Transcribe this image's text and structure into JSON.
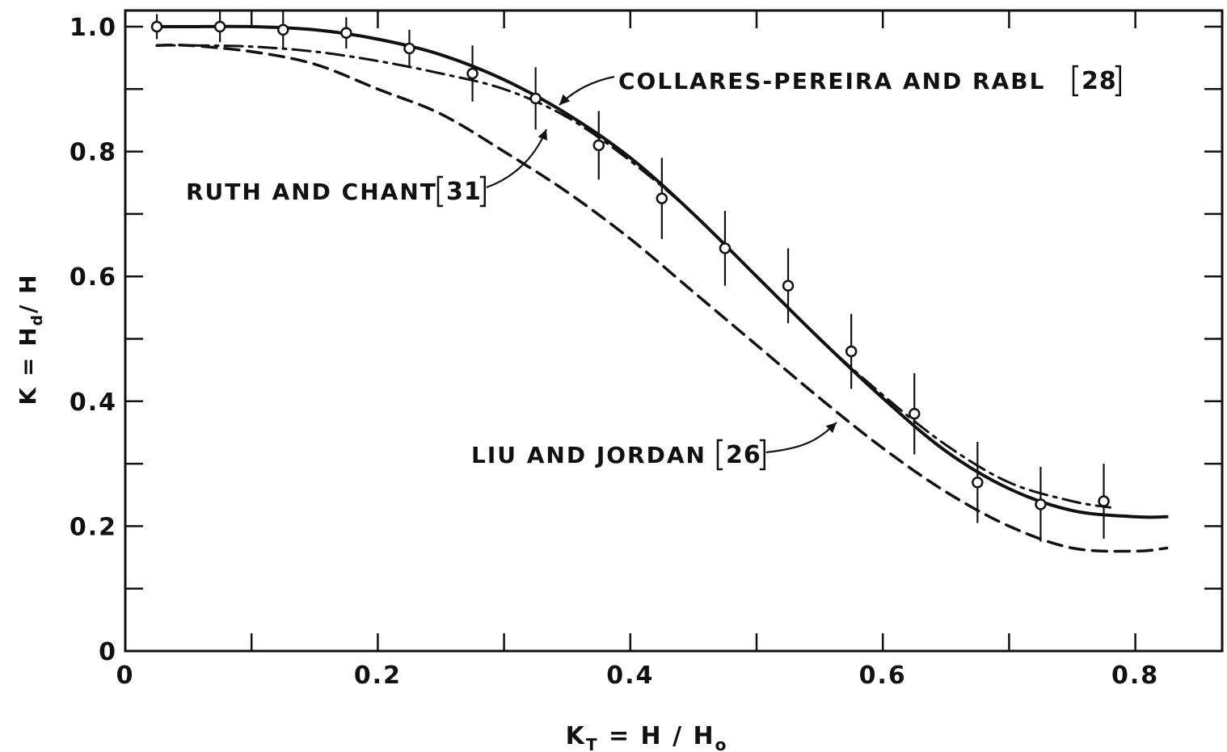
{
  "chart_data": {
    "type": "line",
    "title": "",
    "xlabel": "K",
    "xlabel_sub": "T",
    "xlabel_rest": " = H / H",
    "xlabel_rest_sub": "o",
    "ylabel": "K = H",
    "ylabel_sub": "d",
    "ylabel_rest": "/ H",
    "xlim": [
      0,
      0.86
    ],
    "ylim": [
      0,
      1.03
    ],
    "xticks": [
      0,
      0.1,
      0.2,
      0.3,
      0.4,
      0.5,
      0.6,
      0.7,
      0.8
    ],
    "xticklabels": [
      "0",
      "",
      "0.2",
      "",
      "0.4",
      "",
      "0.6",
      "",
      "0.8"
    ],
    "yticks": [
      0,
      0.1,
      0.2,
      0.3,
      0.4,
      0.5,
      0.6,
      0.7,
      0.8,
      0.9,
      1.0
    ],
    "yticklabels": [
      "0",
      "",
      "0.2",
      "",
      "0.4",
      "",
      "0.6",
      "",
      "0.8",
      "",
      "1.0"
    ],
    "grid": false,
    "series": [
      {
        "name": "COLLARES-PEREIRA AND RABL [28]",
        "style": "solid",
        "x": [
          0.025,
          0.05,
          0.1,
          0.15,
          0.2,
          0.25,
          0.3,
          0.35,
          0.4,
          0.45,
          0.5,
          0.55,
          0.6,
          0.65,
          0.7,
          0.75,
          0.8,
          0.825
        ],
        "y": [
          1.0,
          1.0,
          1.0,
          0.995,
          0.98,
          0.955,
          0.915,
          0.86,
          0.79,
          0.7,
          0.6,
          0.5,
          0.405,
          0.32,
          0.26,
          0.225,
          0.215,
          0.215
        ]
      },
      {
        "name": "RUTH AND CHANT [31]",
        "style": "dashdot",
        "x": [
          0.025,
          0.05,
          0.1,
          0.15,
          0.2,
          0.25,
          0.3,
          0.35,
          0.4,
          0.45,
          0.5,
          0.55,
          0.6,
          0.65,
          0.7,
          0.75,
          0.78
        ],
        "y": [
          0.97,
          0.97,
          0.968,
          0.96,
          0.945,
          0.925,
          0.9,
          0.855,
          0.785,
          0.7,
          0.6,
          0.5,
          0.41,
          0.33,
          0.27,
          0.24,
          0.23
        ]
      },
      {
        "name": "LIU AND JORDAN [26]",
        "style": "dashed",
        "x": [
          0.025,
          0.05,
          0.1,
          0.15,
          0.2,
          0.25,
          0.3,
          0.35,
          0.4,
          0.45,
          0.5,
          0.55,
          0.6,
          0.65,
          0.7,
          0.75,
          0.8,
          0.825
        ],
        "y": [
          0.97,
          0.97,
          0.96,
          0.94,
          0.9,
          0.86,
          0.8,
          0.735,
          0.66,
          0.575,
          0.49,
          0.405,
          0.325,
          0.255,
          0.2,
          0.165,
          0.16,
          0.165
        ]
      }
    ],
    "data_points": [
      {
        "x": 0.025,
        "y": 1.0,
        "err": 0.02
      },
      {
        "x": 0.075,
        "y": 1.0,
        "err": 0.025
      },
      {
        "x": 0.125,
        "y": 0.995,
        "err": 0.03
      },
      {
        "x": 0.175,
        "y": 0.99,
        "err": 0.025
      },
      {
        "x": 0.225,
        "y": 0.965,
        "err": 0.03
      },
      {
        "x": 0.275,
        "y": 0.925,
        "err": 0.045
      },
      {
        "x": 0.325,
        "y": 0.885,
        "err": 0.05
      },
      {
        "x": 0.375,
        "y": 0.81,
        "err": 0.055
      },
      {
        "x": 0.425,
        "y": 0.725,
        "err": 0.065
      },
      {
        "x": 0.475,
        "y": 0.645,
        "err": 0.06
      },
      {
        "x": 0.525,
        "y": 0.585,
        "err": 0.06
      },
      {
        "x": 0.575,
        "y": 0.48,
        "err": 0.06
      },
      {
        "x": 0.625,
        "y": 0.38,
        "err": 0.065
      },
      {
        "x": 0.675,
        "y": 0.27,
        "err": 0.065
      },
      {
        "x": 0.725,
        "y": 0.235,
        "err": 0.06
      },
      {
        "x": 0.775,
        "y": 0.24,
        "err": 0.06
      }
    ],
    "annotations": [
      {
        "text": "COLLARES-PEREIRA AND RABL",
        "ref": "[28]",
        "series": 0
      },
      {
        "text": "RUTH AND CHANT",
        "ref": "[31]",
        "series": 1
      },
      {
        "text": "LIU AND JORDAN",
        "ref": "[26]",
        "series": 2
      }
    ],
    "legend": "none"
  }
}
